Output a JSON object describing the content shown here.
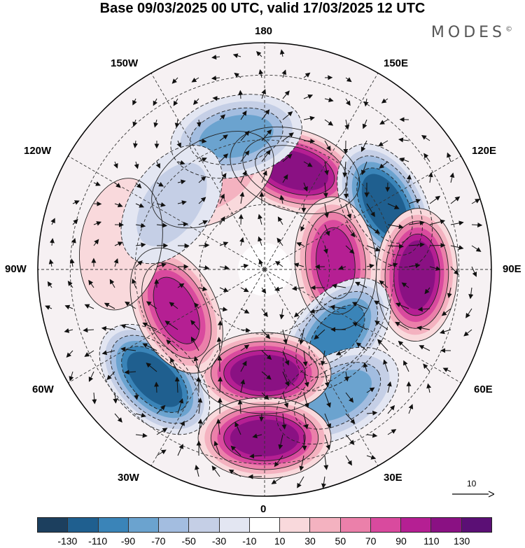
{
  "title": "Base 09/03/2025 00 UTC, valid 17/03/2025 12 UTC",
  "brand": "MODES",
  "brand_mark": "©",
  "longitude_labels": {
    "lon_180": "180",
    "lon_150w": "150W",
    "lon_150e": "150E",
    "lon_120w": "120W",
    "lon_120e": "120E",
    "lon_90w": "90W",
    "lon_90e": "90E",
    "lon_60w": "60W",
    "lon_60e": "60E",
    "lon_30w": "30W",
    "lon_30e": "30E",
    "lon_0": "0"
  },
  "vector_scale_label": "10",
  "colorbar": {
    "labels": [
      "-130",
      "-110",
      "-90",
      "-70",
      "-50",
      "-30",
      "-10",
      "10",
      "30",
      "50",
      "70",
      "90",
      "110",
      "130"
    ],
    "colors": [
      "#1c3f5e",
      "#1f5f8f",
      "#3a84b8",
      "#6ba3cf",
      "#a3bde0",
      "#c5cfe6",
      "#e3e6f2",
      "#ffffff",
      "#f9d9dc",
      "#f4b2c0",
      "#eb80aa",
      "#d94a9e",
      "#b51f93",
      "#8a1183",
      "#5b0f75"
    ]
  },
  "anomaly_centers": [
    {
      "lon": 163,
      "lat": 58,
      "value": 120
    },
    {
      "lon": 118,
      "lat": 48,
      "value": -130
    },
    {
      "lon": 95,
      "lat": 68,
      "value": 110
    },
    {
      "lon": 88,
      "lat": 43,
      "value": 120
    },
    {
      "lon": 48,
      "lat": 60,
      "value": -100
    },
    {
      "lon": 30,
      "lat": 45,
      "value": -80
    },
    {
      "lon": 0,
      "lat": 58,
      "value": 130
    },
    {
      "lon": 0,
      "lat": 38,
      "value": 120
    },
    {
      "lon": -45,
      "lat": 42,
      "value": -130
    },
    {
      "lon": -65,
      "lat": 60,
      "value": 100
    },
    {
      "lon": -100,
      "lat": 45,
      "value": 30
    },
    {
      "lon": -150,
      "lat": 58,
      "value": 40
    },
    {
      "lon": -168,
      "lat": 48,
      "value": -80
    },
    {
      "lon": -125,
      "lat": 55,
      "value": -40
    }
  ]
}
